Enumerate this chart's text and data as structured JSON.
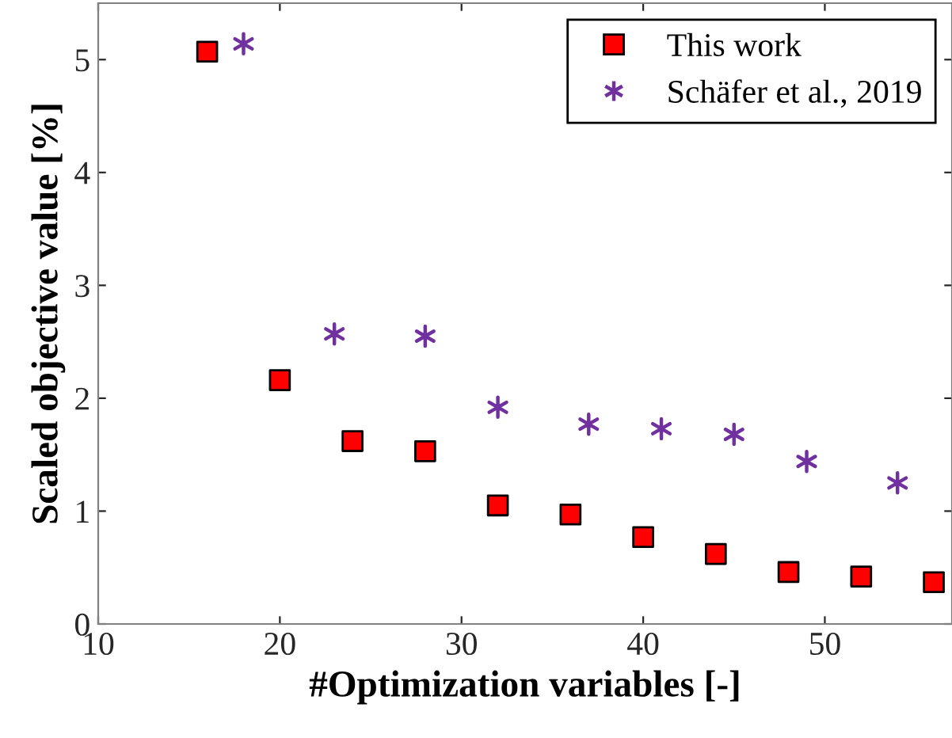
{
  "chart_data": {
    "type": "scatter",
    "xlabel": "#Optimization variables [-]",
    "ylabel": "Scaled objective value [%]",
    "xlim": [
      10,
      57
    ],
    "xticks": [
      10,
      20,
      30,
      40,
      50
    ],
    "ylim": [
      0,
      5.5
    ],
    "yticks": [
      0,
      1,
      2,
      3,
      4,
      5
    ],
    "grid": false,
    "legend": "top right",
    "series": [
      {
        "name": "This work",
        "color": "#ff0000",
        "marker": "square",
        "x": [
          16,
          20,
          24,
          28,
          32,
          36,
          40,
          44,
          48,
          52,
          56
        ],
        "values": [
          5.07,
          2.16,
          1.62,
          1.53,
          1.05,
          0.97,
          0.77,
          0.62,
          0.46,
          0.42,
          0.37
        ]
      },
      {
        "name": "Schäfer et al., 2019",
        "color": "#7030a0",
        "marker": "cross",
        "x": [
          18,
          23,
          28,
          32,
          37,
          41,
          45,
          49,
          54
        ],
        "values": [
          5.14,
          2.57,
          2.55,
          1.92,
          1.77,
          1.73,
          1.68,
          1.44,
          1.25
        ]
      }
    ]
  }
}
